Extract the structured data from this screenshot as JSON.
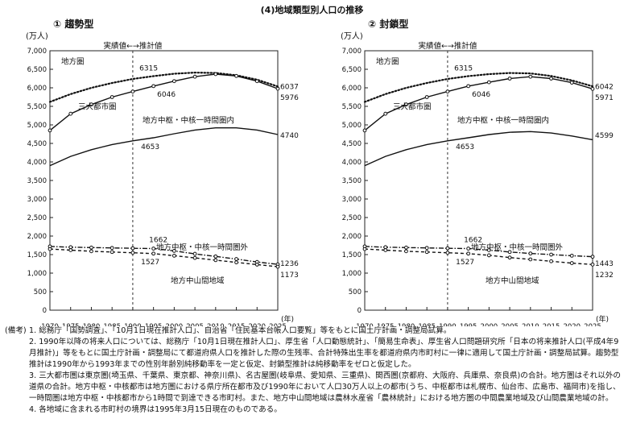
{
  "title": "(4)地域類型別人口の推移",
  "chart_data": [
    {
      "type": "line",
      "panel_title": "① 趨勢型",
      "unit": "(万人)",
      "x_axis_unit": "(年)",
      "x": [
        1970,
        1975,
        1980,
        1985,
        1990,
        1995,
        2000,
        2005,
        2010,
        2015,
        2020,
        2025
      ],
      "ylim": [
        0,
        7000
      ],
      "yticks": [
        "0",
        "500",
        "1,000",
        "1,500",
        "2,000",
        "2,500",
        "3,000",
        "3,500",
        "4,000",
        "4,500",
        "5,000",
        "5,500",
        "6,000",
        "6,500",
        "7,000"
      ],
      "divider_label": "実績値←→推計値",
      "series": [
        {
          "name": "地方圏",
          "values": [
            5620,
            5830,
            6000,
            6130,
            6240,
            6315,
            6380,
            6410,
            6400,
            6340,
            6220,
            6037
          ],
          "style": "dotted"
        },
        {
          "name": "三大都市圏",
          "values": [
            4850,
            5300,
            5550,
            5750,
            5900,
            6046,
            6180,
            6300,
            6370,
            6320,
            6180,
            5976
          ],
          "style": "solid-circle"
        },
        {
          "name": "地方中枢・中核一時間圏内",
          "values": [
            3900,
            4150,
            4330,
            4470,
            4570,
            4653,
            4760,
            4860,
            4920,
            4920,
            4860,
            4740
          ],
          "style": "solid"
        },
        {
          "name": "地方中枢・中核一時間圏外",
          "values": [
            1720,
            1700,
            1690,
            1680,
            1670,
            1662,
            1600,
            1520,
            1450,
            1380,
            1300,
            1236
          ],
          "style": "dash-dot"
        },
        {
          "name": "地方中山間地域",
          "values": [
            1650,
            1620,
            1590,
            1570,
            1550,
            1527,
            1470,
            1410,
            1350,
            1290,
            1230,
            1173
          ],
          "style": "dashed"
        }
      ],
      "annotations": [
        "6315",
        "6046",
        "4653",
        "1662",
        "1527",
        "6037",
        "5976",
        "4740",
        "1236",
        "1173"
      ]
    },
    {
      "type": "line",
      "panel_title": "② 封鎖型",
      "unit": "(万人)",
      "x_axis_unit": "(年)",
      "x": [
        1970,
        1975,
        1980,
        1985,
        1990,
        1995,
        2000,
        2005,
        2010,
        2015,
        2020,
        2025
      ],
      "ylim": [
        0,
        7000
      ],
      "yticks": [
        "0",
        "500",
        "1,000",
        "1,500",
        "2,000",
        "2,500",
        "3,000",
        "3,500",
        "4,000",
        "4,500",
        "5,000",
        "5,500",
        "6,000",
        "6,500",
        "7,000"
      ],
      "divider_label": "実績値←→推計値",
      "series": [
        {
          "name": "地方圏",
          "values": [
            5620,
            5830,
            6000,
            6130,
            6240,
            6315,
            6370,
            6400,
            6390,
            6320,
            6200,
            6042
          ],
          "style": "dotted"
        },
        {
          "name": "三大都市圏",
          "values": [
            4850,
            5300,
            5550,
            5750,
            5900,
            6046,
            6150,
            6250,
            6300,
            6250,
            6140,
            5971
          ],
          "style": "solid-circle"
        },
        {
          "name": "地方中枢・中核一時間圏内",
          "values": [
            3900,
            4150,
            4330,
            4470,
            4570,
            4653,
            4740,
            4800,
            4820,
            4780,
            4700,
            4599
          ],
          "style": "solid"
        },
        {
          "name": "地方中枢・中核一時間圏外",
          "values": [
            1720,
            1700,
            1690,
            1680,
            1670,
            1662,
            1620,
            1570,
            1530,
            1500,
            1470,
            1443
          ],
          "style": "dash-dot"
        },
        {
          "name": "地方中山間地域",
          "values": [
            1650,
            1620,
            1590,
            1570,
            1550,
            1527,
            1480,
            1420,
            1370,
            1320,
            1270,
            1232
          ],
          "style": "dashed"
        }
      ],
      "annotations": [
        "6315",
        "6046",
        "4653",
        "1662",
        "1527",
        "6042",
        "5971",
        "4599",
        "1443",
        "1232"
      ]
    }
  ],
  "notes": [
    {
      "lead": "(備考)",
      "text": "1. 総務庁「国勢調査」、「10月1日現在推計人口」、自治省「住民基本台帳人口要覧」等をもとに国土庁計画・調整局試算。"
    },
    {
      "lead": "",
      "text": "2. 1990年以降の将来人口については、総務庁「10月1日現在推計人口」、厚生省「人口動態統計」、「簡易生命表」、厚生省人口問題研究所「日本の将来推計人口(平成4年9月推計)」等をもとに国土庁計画・調整局にて都道府県人口を推計した際の生残率、合計特殊出生率を都道府県内市町村に一律に適用して国土庁計画・調整局試算。趨勢型推計は1990年から1993年までの性別年齢別純移動率を一定と仮定、封鎖型推計は純移動率をゼロと仮定した。"
    },
    {
      "lead": "",
      "text": "3. 三大都市圏は東京圏(埼玉県、千葉県、東京都、神奈川県)、名古屋圏(岐阜県、愛知県、三重県)、関西圏(京都府、大阪府、兵庫県、奈良県)の合計。地方圏はそれ以外の道県の合計。地方中枢・中核都市は地方圏における県庁所在都市及び1990年において人口30万人以上の都市(うち、中枢都市は札幌市、仙台市、広島市、福岡市)を指し、一時間圏は地方中枢・中核都市から1時間で到達できる市町村。また、地方中山間地域は農林水産省「農林統計」における地方圏の中間農業地域及び山間農業地域の計。"
    },
    {
      "lead": "",
      "text": "4. 各地域に含まれる市町村の境界は1995年3月15日現在のものである。"
    }
  ]
}
